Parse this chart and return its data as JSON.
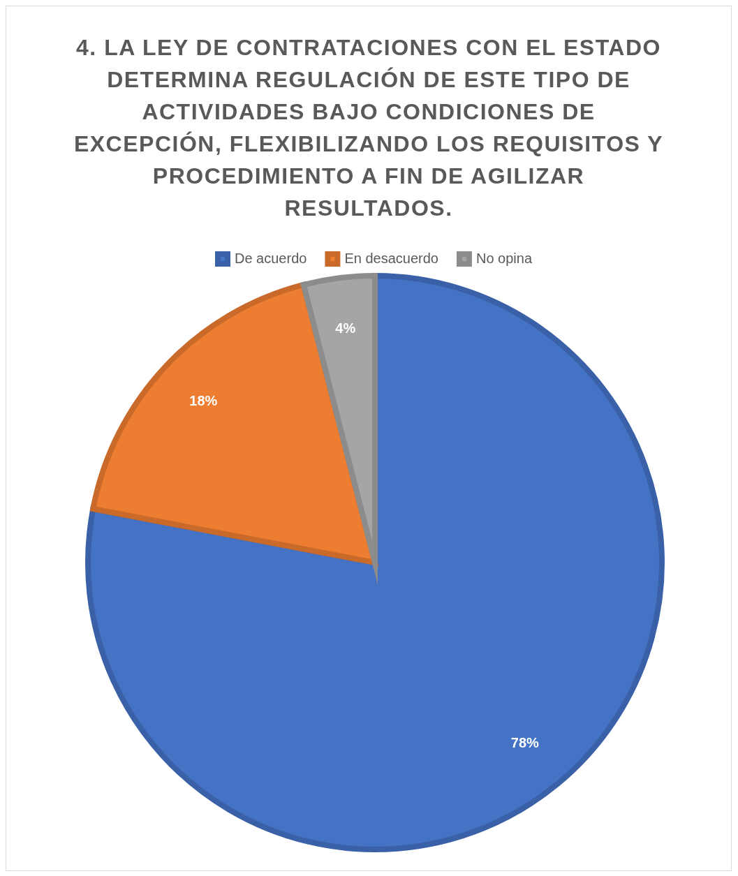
{
  "chart_data": {
    "type": "pie",
    "title": "4. LA LEY DE CONTRATACIONES CON EL ESTADO DETERMINA REGULACIÓN DE ESTE TIPO DE ACTIVIDADES BAJO CONDICIONES DE EXCEPCIÓN, FLEXIBILIZANDO LOS REQUISITOS Y PROCEDIMIENTO A FIN DE AGILIZAR RESULTADOS.",
    "categories": [
      "De acuerdo",
      "En desacuerdo",
      "No opina"
    ],
    "values": [
      78,
      18,
      4
    ],
    "colors": [
      "#4472c4",
      "#ed7d31",
      "#a5a5a5"
    ],
    "value_labels": [
      "78%",
      "18%",
      "4%"
    ],
    "legend": "top"
  }
}
